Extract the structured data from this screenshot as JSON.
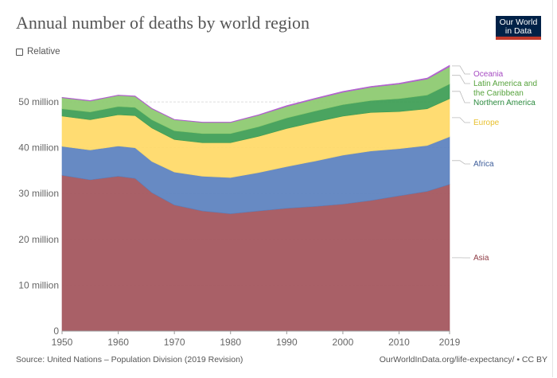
{
  "title": "Annual number of deaths by world region",
  "logo": {
    "line1": "Our World",
    "line2": "in Data"
  },
  "relative_toggle": {
    "label": "Relative",
    "checked": false
  },
  "footer": {
    "source": "Source: United Nations – Population Division (2019 Revision)",
    "credit": "OurWorldInData.org/life-expectancy/ • CC BY"
  },
  "chart_data": {
    "type": "area",
    "stacked": true,
    "title": "Annual number of deaths by world region",
    "x": [
      1950,
      1955,
      1960,
      1963,
      1966,
      1970,
      1975,
      1980,
      1985,
      1990,
      1995,
      2000,
      2005,
      2010,
      2015,
      2019
    ],
    "series": [
      {
        "name": "Asia",
        "color": "#a2525a",
        "values": [
          34.0,
          33.0,
          33.8,
          33.3,
          30.2,
          27.5,
          26.2,
          25.6,
          26.2,
          26.8,
          27.2,
          27.7,
          28.5,
          29.5,
          30.5,
          32.0
        ]
      },
      {
        "name": "Africa",
        "color": "#5a80be",
        "values": [
          6.3,
          6.5,
          6.6,
          6.7,
          6.8,
          7.2,
          7.6,
          7.9,
          8.4,
          9.1,
          9.9,
          10.7,
          10.8,
          10.3,
          10.0,
          10.4
        ]
      },
      {
        "name": "Europe",
        "color": "#ffd966",
        "values": [
          6.6,
          6.6,
          6.8,
          7.0,
          7.3,
          7.1,
          7.3,
          7.6,
          7.9,
          8.3,
          8.5,
          8.5,
          8.4,
          8.1,
          8.0,
          8.3
        ]
      },
      {
        "name": "Northern America",
        "color": "#3b9c52",
        "values": [
          1.6,
          1.7,
          1.8,
          1.8,
          1.8,
          1.9,
          2.0,
          2.0,
          2.1,
          2.3,
          2.4,
          2.5,
          2.6,
          2.8,
          3.0,
          3.2
        ]
      },
      {
        "name": "Latin America and the Caribbean",
        "color": "#8bc96e",
        "values": [
          2.4,
          2.4,
          2.4,
          2.4,
          2.4,
          2.4,
          2.4,
          2.4,
          2.5,
          2.5,
          2.6,
          2.7,
          2.9,
          3.2,
          3.5,
          3.8
        ]
      },
      {
        "name": "Oceania",
        "color": "#b05ccf",
        "values": [
          0.1,
          0.1,
          0.1,
          0.1,
          0.1,
          0.1,
          0.1,
          0.1,
          0.1,
          0.2,
          0.2,
          0.2,
          0.2,
          0.2,
          0.2,
          0.3
        ]
      }
    ],
    "label_colors": {
      "Oceania": "#a64bc2",
      "Latin America and the Caribbean": "#57a33d",
      "Northern America": "#2b8a3e",
      "Europe": "#e8c02f",
      "Africa": "#3d5d9a",
      "Asia": "#8e3b44"
    },
    "label_lines": {
      "Latin America and the Caribbean": [
        "Latin America and",
        "the Caribbean"
      ]
    },
    "xlim": [
      1950,
      2019
    ],
    "ylim": [
      0,
      58
    ],
    "x_ticks": [
      1950,
      1960,
      1970,
      1980,
      1990,
      2000,
      2010,
      2019
    ],
    "y_ticks": [
      {
        "value": 0,
        "label": "0"
      },
      {
        "value": 10,
        "label": "10 million"
      },
      {
        "value": 20,
        "label": "20 million"
      },
      {
        "value": 30,
        "label": "30 million"
      },
      {
        "value": 40,
        "label": "40 million"
      },
      {
        "value": 50,
        "label": "50 million"
      }
    ],
    "grid": true,
    "legend": "right, labels beside the last value"
  }
}
